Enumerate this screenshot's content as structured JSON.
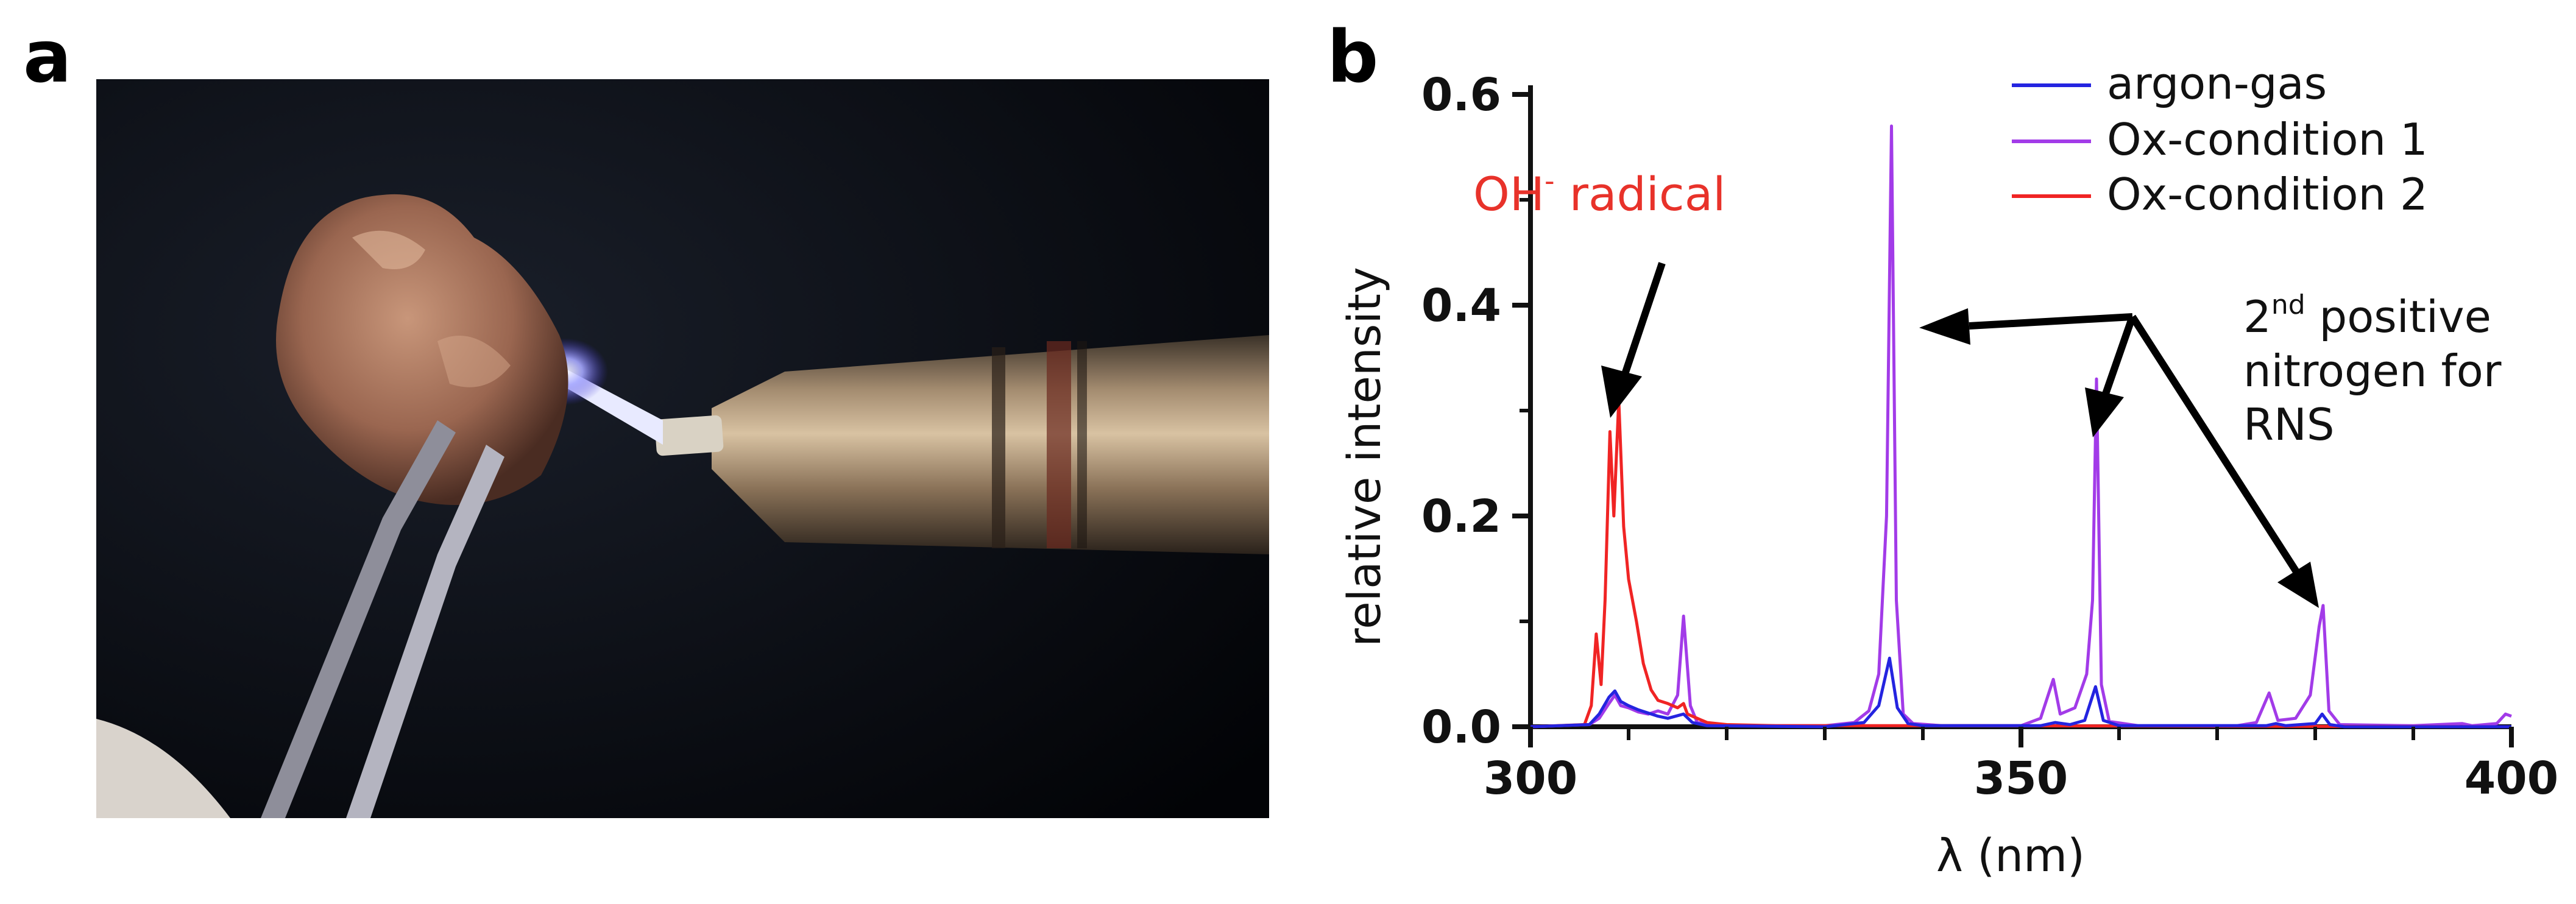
{
  "panels": {
    "a": "a",
    "b": "b"
  },
  "chart_data": {
    "type": "line",
    "xlabel": "λ (nm)",
    "ylabel": "relative intensity",
    "xlim": [
      300,
      400
    ],
    "ylim": [
      0,
      0.6
    ],
    "xticks": [
      "300",
      "350",
      "400"
    ],
    "yticks": [
      "0.0",
      "0.2",
      "0.4",
      "0.6"
    ],
    "legend_position": "top-right",
    "grid": false,
    "series": [
      {
        "name": "argon-gas",
        "color": "#2424e0",
        "points": [
          [
            300,
            0
          ],
          [
            306,
            0.002
          ],
          [
            307,
            0.012
          ],
          [
            308,
            0.028
          ],
          [
            308.6,
            0.034
          ],
          [
            309.2,
            0.024
          ],
          [
            310,
            0.02
          ],
          [
            311,
            0.016
          ],
          [
            312,
            0.013
          ],
          [
            313,
            0.01
          ],
          [
            314,
            0.008
          ],
          [
            315.6,
            0.012
          ],
          [
            316.5,
            0.004
          ],
          [
            318,
            0.001
          ],
          [
            330,
            0
          ],
          [
            334,
            0.004
          ],
          [
            335.5,
            0.02
          ],
          [
            336.6,
            0.065
          ],
          [
            337.4,
            0.018
          ],
          [
            338.5,
            0.003
          ],
          [
            340,
            0.001
          ],
          [
            352,
            0.001
          ],
          [
            353.5,
            0.004
          ],
          [
            355,
            0.002
          ],
          [
            356.5,
            0.006
          ],
          [
            357.6,
            0.038
          ],
          [
            358.4,
            0.006
          ],
          [
            360,
            0.001
          ],
          [
            375,
            0.001
          ],
          [
            376,
            0.003
          ],
          [
            377,
            0.001
          ],
          [
            380,
            0.003
          ],
          [
            380.7,
            0.012
          ],
          [
            381.5,
            0.002
          ],
          [
            383,
            0
          ],
          [
            400,
            0
          ]
        ]
      },
      {
        "name": "Ox-condition 1",
        "color": "#a23be8",
        "points": [
          [
            300,
            0
          ],
          [
            306,
            0.002
          ],
          [
            307,
            0.008
          ],
          [
            308,
            0.022
          ],
          [
            308.6,
            0.03
          ],
          [
            309.2,
            0.02
          ],
          [
            310,
            0.018
          ],
          [
            311,
            0.014
          ],
          [
            312,
            0.012
          ],
          [
            313,
            0.015
          ],
          [
            314,
            0.012
          ],
          [
            315,
            0.03
          ],
          [
            315.6,
            0.105
          ],
          [
            316.3,
            0.02
          ],
          [
            317,
            0.004
          ],
          [
            320,
            0.001
          ],
          [
            330,
            0.001
          ],
          [
            333,
            0.004
          ],
          [
            334.5,
            0.015
          ],
          [
            335.5,
            0.05
          ],
          [
            336.3,
            0.2
          ],
          [
            336.8,
            0.57
          ],
          [
            337.3,
            0.12
          ],
          [
            338,
            0.012
          ],
          [
            339,
            0.003
          ],
          [
            342,
            0.001
          ],
          [
            350,
            0.001
          ],
          [
            352,
            0.008
          ],
          [
            353.3,
            0.045
          ],
          [
            354,
            0.012
          ],
          [
            355.5,
            0.018
          ],
          [
            356.7,
            0.05
          ],
          [
            357.3,
            0.12
          ],
          [
            357.7,
            0.33
          ],
          [
            358.2,
            0.04
          ],
          [
            359,
            0.005
          ],
          [
            362,
            0.001
          ],
          [
            372,
            0.001
          ],
          [
            374,
            0.004
          ],
          [
            375.3,
            0.032
          ],
          [
            376.2,
            0.006
          ],
          [
            378,
            0.008
          ],
          [
            379.5,
            0.03
          ],
          [
            380.4,
            0.095
          ],
          [
            380.8,
            0.115
          ],
          [
            381.4,
            0.015
          ],
          [
            382.5,
            0.002
          ],
          [
            390,
            0.001
          ],
          [
            395,
            0.003
          ],
          [
            396,
            0.001
          ],
          [
            398.5,
            0.003
          ],
          [
            399.4,
            0.012
          ],
          [
            400,
            0.01
          ]
        ]
      },
      {
        "name": "Ox-condition 2",
        "color": "#f02424",
        "points": [
          [
            300,
            0
          ],
          [
            305.5,
            0.002
          ],
          [
            306.2,
            0.02
          ],
          [
            306.7,
            0.088
          ],
          [
            307.2,
            0.04
          ],
          [
            307.6,
            0.12
          ],
          [
            308.1,
            0.28
          ],
          [
            308.5,
            0.2
          ],
          [
            309.0,
            0.31
          ],
          [
            309.5,
            0.19
          ],
          [
            310,
            0.14
          ],
          [
            310.8,
            0.1
          ],
          [
            311.5,
            0.06
          ],
          [
            312.3,
            0.035
          ],
          [
            313,
            0.025
          ],
          [
            314,
            0.022
          ],
          [
            315,
            0.018
          ],
          [
            315.6,
            0.022
          ],
          [
            316,
            0.012
          ],
          [
            317,
            0.008
          ],
          [
            318,
            0.004
          ],
          [
            320,
            0.002
          ],
          [
            325,
            0.001
          ],
          [
            335,
            0.001
          ],
          [
            338,
            0.001
          ],
          [
            345,
            0.001
          ],
          [
            400,
            0
          ]
        ]
      }
    ],
    "annotations": {
      "oh_prefix": "OH",
      "oh_sup": "-",
      "oh_suffix": " radical",
      "n2_pre": "2",
      "n2_sup": "nd",
      "n2_line1": " positive",
      "n2_line2": "nitrogen for",
      "n2_line3": "RNS"
    }
  }
}
